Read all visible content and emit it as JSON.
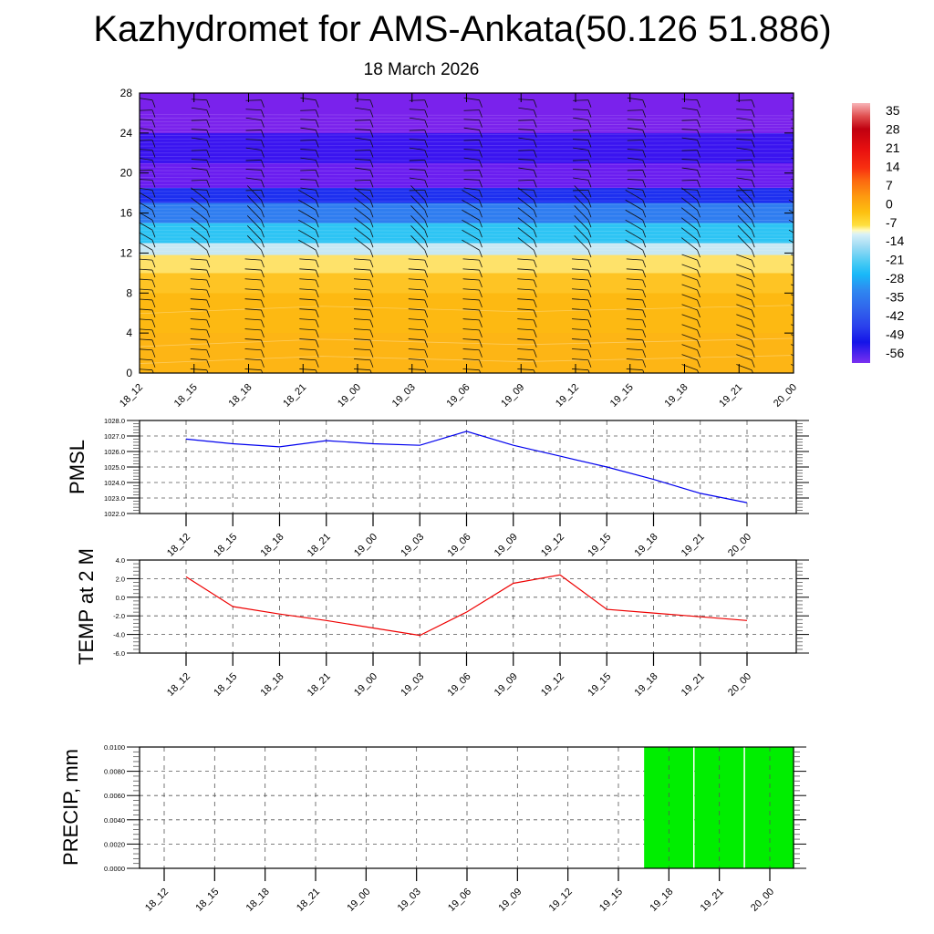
{
  "header": {
    "title": "Kazhydromet for AMS-Ankata(50.126 51.886)",
    "subtitle": "18 March 2026"
  },
  "chart_data": [
    {
      "type": "heatmap",
      "name": "vertical-cross-section",
      "title": "",
      "xlabel": "",
      "ylabel": "",
      "x_categories": [
        "18_12",
        "18_15",
        "18_18",
        "18_21",
        "19_00",
        "19_03",
        "19_06",
        "19_09",
        "19_12",
        "19_15",
        "19_18",
        "19_21",
        "20_00"
      ],
      "y_ticks": [
        "0",
        "4",
        "8",
        "12",
        "16",
        "20",
        "24",
        "28"
      ],
      "ylim": [
        0,
        28
      ],
      "colorbar": {
        "labels": [
          "35",
          "28",
          "21",
          "14",
          "7",
          "0",
          "-7",
          "-14",
          "-21",
          "-28",
          "-35",
          "-42",
          "-49",
          "-56"
        ],
        "range": [
          -60,
          38
        ]
      },
      "temperature_bands": [
        {
          "from": 0,
          "to": 4,
          "value": 2,
          "color": "#fdb515"
        },
        {
          "from": 4,
          "to": 8,
          "value": 0,
          "color": "#fdb913"
        },
        {
          "from": 8,
          "to": 10,
          "value": -3,
          "color": "#fec424"
        },
        {
          "from": 10,
          "to": 11.8,
          "value": -8,
          "color": "#fee26a"
        },
        {
          "from": 11.8,
          "to": 13,
          "value": -15,
          "color": "#c8e8f4"
        },
        {
          "from": 13,
          "to": 15,
          "value": -25,
          "color": "#2dc4f4"
        },
        {
          "from": 15,
          "to": 17,
          "value": -38,
          "color": "#2f7df0"
        },
        {
          "from": 17,
          "to": 18.5,
          "value": -52,
          "color": "#1e2ff0"
        },
        {
          "from": 18.5,
          "to": 21,
          "value": -58,
          "color": "#6a1ef0"
        },
        {
          "from": 21,
          "to": 24,
          "value": -57,
          "color": "#3b14f0"
        },
        {
          "from": 24,
          "to": 28,
          "value": -56,
          "color": "#7a22ec"
        }
      ],
      "wind_barbs": true
    },
    {
      "type": "line",
      "name": "pmsl",
      "ylabel": "PMSL",
      "categories": [
        "18_12",
        "18_15",
        "18_18",
        "18_21",
        "19_00",
        "19_03",
        "19_06",
        "19_09",
        "19_12",
        "19_15",
        "19_18",
        "19_21",
        "20_00"
      ],
      "values": [
        1026.8,
        1026.5,
        1026.3,
        1026.7,
        1026.5,
        1026.4,
        1027.3,
        1026.4,
        1025.7,
        1025.0,
        1024.2,
        1023.3,
        1022.7
      ],
      "ylim": [
        1022.0,
        1028.0
      ],
      "y_ticks": [
        "1022.0",
        "1023.0",
        "1024.0",
        "1025.0",
        "1026.0",
        "1027.0",
        "1028.0"
      ],
      "color": "#0000ee",
      "grid": true
    },
    {
      "type": "line",
      "name": "temp-2m",
      "ylabel": "TEMP at 2 M",
      "categories": [
        "18_12",
        "18_15",
        "18_18",
        "18_21",
        "19_00",
        "19_03",
        "19_06",
        "19_09",
        "19_12",
        "19_15",
        "19_18",
        "19_21",
        "20_00"
      ],
      "values": [
        2.2,
        -1.0,
        -1.8,
        -2.5,
        -3.3,
        -4.1,
        -1.6,
        1.5,
        2.4,
        -1.3,
        -1.7,
        -2.1,
        -2.5
      ],
      "ylim": [
        -6.0,
        4.0
      ],
      "y_ticks": [
        "-6.0",
        "-4.0",
        "-2.0",
        "0.0",
        "2.0",
        "4.0"
      ],
      "color": "#ee0000",
      "grid": true
    },
    {
      "type": "bar",
      "name": "precip",
      "ylabel": "PRECIP, mm",
      "categories": [
        "18_12",
        "18_15",
        "18_18",
        "18_21",
        "19_00",
        "19_03",
        "19_06",
        "19_09",
        "19_12",
        "19_15",
        "19_18",
        "19_21",
        "20_00"
      ],
      "values": [
        0,
        0,
        0,
        0,
        0,
        0,
        0,
        0,
        0,
        0,
        0.01,
        0.01,
        0.01
      ],
      "ylim": [
        0.0,
        0.01
      ],
      "y_ticks": [
        "0.0000",
        "0.0020",
        "0.0040",
        "0.0060",
        "0.0080",
        "0.0100"
      ],
      "color": "#00ee00",
      "grid": true
    }
  ]
}
